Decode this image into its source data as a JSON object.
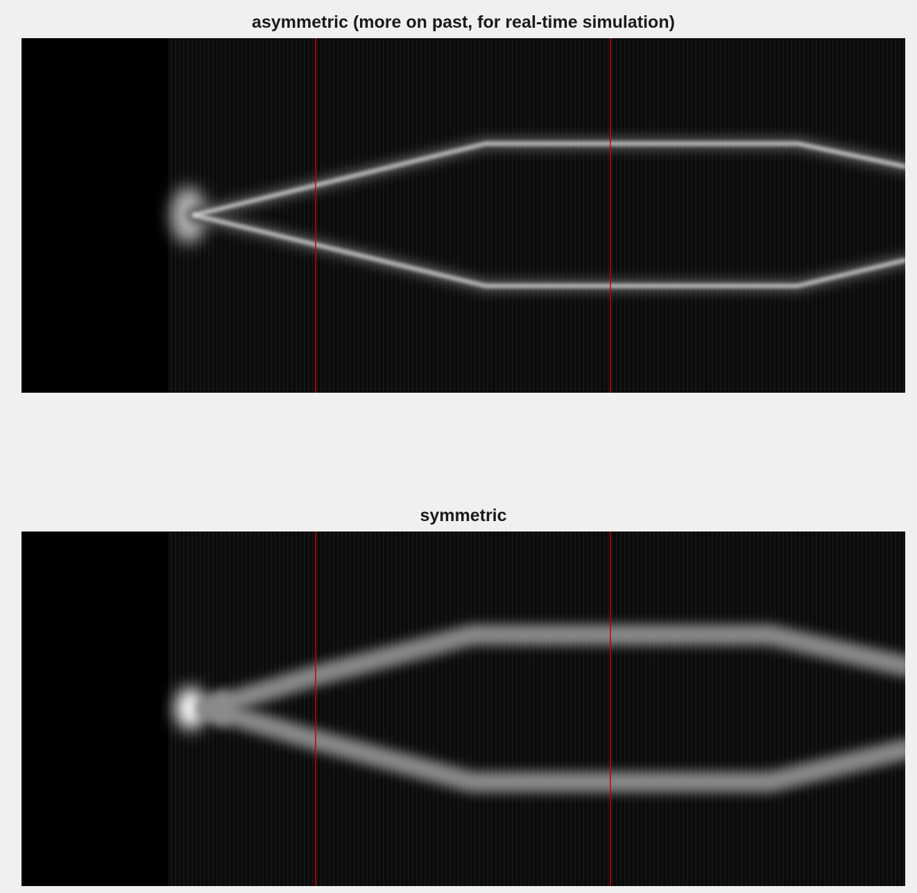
{
  "panels": [
    {
      "title": "asymmetric (more on past, for real-time simulation)"
    },
    {
      "title": "symmetric"
    }
  ]
}
